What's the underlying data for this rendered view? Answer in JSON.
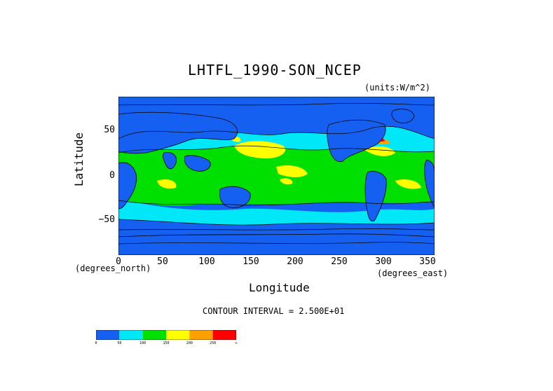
{
  "title": "LHTFL_1990-SON_NCEP",
  "units": "(units:W/m^2)",
  "yaxis": {
    "label": "Latitude",
    "ticks": [
      "50",
      "0",
      "−50"
    ],
    "unit_note": "(degrees_north)"
  },
  "xaxis": {
    "label": "Longitude",
    "ticks": [
      "0",
      "50",
      "100",
      "150",
      "200",
      "250",
      "300",
      "350"
    ],
    "unit_note": "(degrees_east)"
  },
  "contour_interval": "CONTOUR INTERVAL = 2.500E+01",
  "colorbar": {
    "labels": [
      "0",
      "50",
      "100",
      "150",
      "200",
      "250",
      "∞"
    ],
    "colors": [
      "#1560f0",
      "#00e8f8",
      "#00e000",
      "#ffff00",
      "#ffa000",
      "#ff0000"
    ]
  },
  "map": {
    "ocean_color": "#1560f0",
    "land_color": "#1560f0",
    "band_colors": {
      "low": "#1560f0",
      "mid": "#00e8f8",
      "high": "#00e000",
      "peak": "#ffff00",
      "max": "#ffa000",
      "extreme": "#ff0000"
    }
  }
}
